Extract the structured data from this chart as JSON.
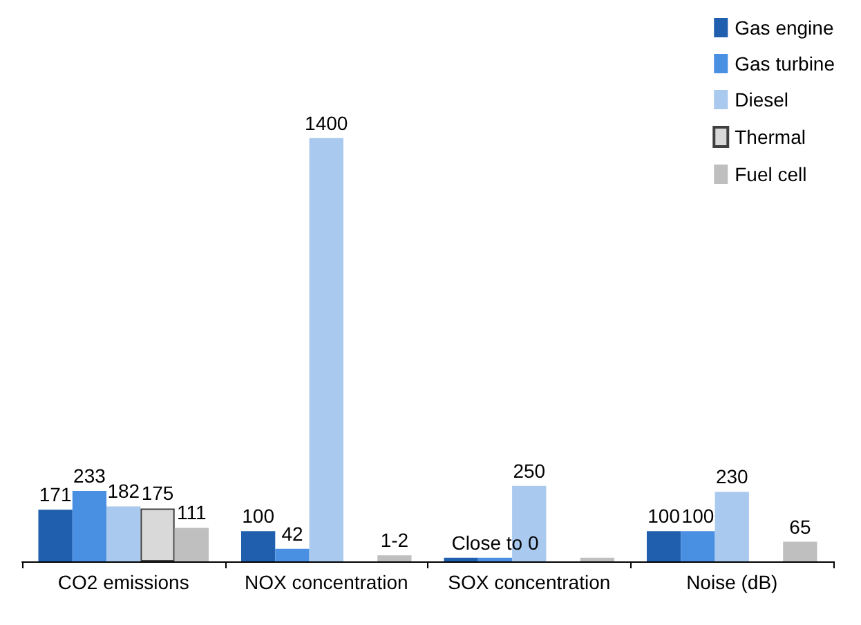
{
  "chart_data": {
    "type": "bar",
    "categories": [
      "CO2 emissions",
      "NOX concentration",
      "SOX concentration",
      "Noise (dB)"
    ],
    "series": [
      {
        "name": "Gas engine",
        "color": "#1f5fad",
        "values": [
          171,
          100,
          12,
          100
        ],
        "value_labels": [
          "171",
          "100",
          null,
          "100"
        ]
      },
      {
        "name": "Gas turbine",
        "color": "#4a90e2",
        "values": [
          233,
          42,
          12,
          100
        ],
        "value_labels": [
          "233",
          "42",
          "Close to 0",
          "100"
        ]
      },
      {
        "name": "Diesel",
        "color": "#a9c9ef",
        "values": [
          182,
          1400,
          250,
          230
        ],
        "value_labels": [
          "182",
          "1400",
          "250",
          "230"
        ]
      },
      {
        "name": "Thermal",
        "color": "#d9d9d9",
        "values": [
          175,
          null,
          null,
          null
        ],
        "value_labels": [
          "175",
          null,
          null,
          null
        ]
      },
      {
        "name": "Fuel cell",
        "color": "#bfbfbf",
        "values": [
          111,
          20,
          12,
          65
        ],
        "value_labels": [
          "111",
          "1-2",
          null,
          "65"
        ]
      }
    ],
    "legend": "top right"
  }
}
